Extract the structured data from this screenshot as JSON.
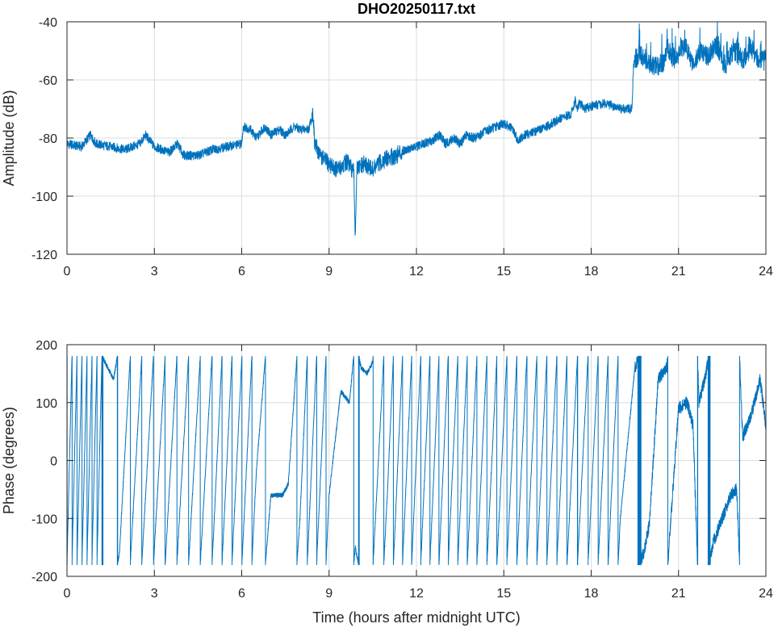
{
  "chart_data": [
    {
      "type": "line",
      "title": "DHO20250117.txt",
      "xlabel": "",
      "ylabel": "Amplitude (dB)",
      "xlim": [
        0,
        24
      ],
      "ylim": [
        -120,
        -40
      ],
      "xticks": [
        0,
        3,
        6,
        9,
        12,
        15,
        18,
        21,
        24
      ],
      "yticks": [
        -40,
        -60,
        -80,
        -100,
        -120
      ],
      "grid": true,
      "color": "#0072BD",
      "series": [
        {
          "x": [
            0,
            0.5,
            0.8,
            1.0,
            1.5,
            2.0,
            2.5,
            2.7,
            3.0,
            3.5,
            3.8,
            4.0,
            4.5,
            5.0,
            5.5,
            6.0,
            6.05,
            6.3,
            6.5,
            6.8,
            7.0,
            7.3,
            7.5,
            7.8,
            8.0,
            8.3,
            8.45,
            8.5,
            8.7,
            9.0,
            9.3,
            9.6,
            9.85,
            9.9,
            9.95,
            10.2,
            10.5,
            10.8,
            11.0,
            11.3,
            11.6,
            12.0,
            12.5,
            12.8,
            13.0,
            13.3,
            13.5,
            13.7,
            14.0,
            14.5,
            15.0,
            15.3,
            15.5,
            15.7,
            16.0,
            16.5,
            17.0,
            17.3,
            17.45,
            17.5,
            17.6,
            17.8,
            18.0,
            18.5,
            19.0,
            19.4,
            19.45,
            19.5,
            19.7,
            20.0,
            20.3,
            20.5,
            20.6,
            20.8,
            21.0,
            21.2,
            21.5,
            21.8,
            22.0,
            22.3,
            22.6,
            22.9,
            23.2,
            23.5,
            23.8,
            24.0
          ],
          "y": [
            -82,
            -83,
            -79,
            -82,
            -83,
            -84,
            -82,
            -79,
            -83,
            -85,
            -82,
            -86,
            -86,
            -84,
            -83,
            -82,
            -76,
            -77,
            -80,
            -76,
            -79,
            -77,
            -79,
            -76,
            -77,
            -77,
            -71,
            -82,
            -86,
            -89,
            -91,
            -88,
            -92,
            -114,
            -91,
            -89,
            -91,
            -88,
            -87,
            -86,
            -84,
            -83,
            -81,
            -79,
            -82,
            -80,
            -82,
            -79,
            -80,
            -77,
            -75,
            -77,
            -81,
            -79,
            -78,
            -76,
            -73,
            -72,
            -67,
            -70,
            -68,
            -70,
            -69,
            -68,
            -70,
            -70,
            -56,
            -53,
            -51,
            -55,
            -55,
            -54,
            -48,
            -53,
            -51,
            -48,
            -54,
            -50,
            -52,
            -48,
            -55,
            -50,
            -53,
            -49,
            -54,
            -53
          ]
        }
      ]
    },
    {
      "type": "line",
      "title": "",
      "xlabel": "Time (hours after midnight UTC)",
      "ylabel": "Phase (degrees)",
      "xlim": [
        0,
        24
      ],
      "ylim": [
        -200,
        200
      ],
      "xticks": [
        0,
        3,
        6,
        9,
        12,
        15,
        18,
        21,
        24
      ],
      "yticks": [
        200,
        100,
        0,
        -100,
        -200
      ],
      "grid": true,
      "color": "#0072BD",
      "series": [
        {
          "wrap_range": [
            -180,
            180
          ],
          "x": [
            0,
            1.2,
            1.6,
            1.8,
            2.5,
            5.0,
            6.5,
            7.0,
            7.4,
            7.6,
            8.0,
            9.0,
            9.4,
            9.7,
            9.9,
            10.1,
            10.3,
            10.5,
            11.0,
            12.0,
            13.0,
            14.0,
            15.0,
            16.0,
            17.0,
            18.0,
            19.0,
            19.5,
            19.8,
            20.0,
            20.3,
            20.6,
            21.0,
            21.3,
            21.5,
            21.7,
            21.9,
            22.2,
            22.5,
            22.8,
            23.0,
            23.2,
            23.5,
            23.8,
            24.0
          ],
          "y": [
            -180,
            2340,
            2300,
            2360,
            3000,
            5240,
            6820,
            7140,
            7140,
            7160,
            7460,
            8580,
            8760,
            8740,
            8850,
            8800,
            8790,
            8810,
            9300,
            10450,
            11600,
            12700,
            13750,
            14800,
            15850,
            16850,
            17900,
            18160,
            18200,
            18250,
            18500,
            18520,
            18810,
            18820,
            18780,
            18460,
            18500,
            18580,
            18620,
            18660,
            18670,
            18400,
            18440,
            18500,
            18420
          ]
        }
      ]
    }
  ]
}
